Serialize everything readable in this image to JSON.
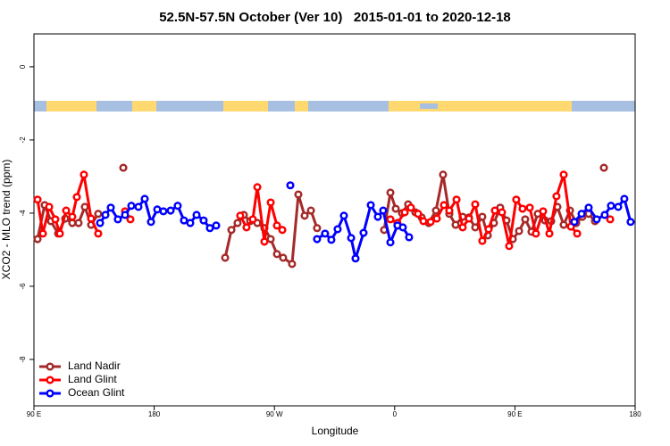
{
  "chart_data": {
    "type": "line",
    "title": "52.5N-57.5N October (Ver 10)   2015-01-01 to 2020-12-18",
    "xlabel": "Longitude",
    "ylabel": "XCO2 - MLO trend (ppm)",
    "xlim": [
      90,
      540
    ],
    "xticks": [
      {
        "value": 90,
        "label": "90 E"
      },
      180,
      {
        "value": 270,
        "label": "90 W"
      },
      {
        "value": 360,
        "label": "0"
      },
      {
        "value": 450,
        "label": "90 E"
      },
      {
        "value": 540,
        "label": "180"
      }
    ],
    "ylim": [
      -9.27,
      0.9
    ],
    "yticks": [
      0,
      -2,
      -4,
      -6,
      -8
    ],
    "legend": "bottom-left",
    "series": [
      {
        "name": "Land Nadir",
        "color": "#a52a2a",
        "x": [
          92.7,
          98.0,
          102.7,
          108.1,
          113.4,
          118.7,
          123.4,
          128.1,
          132.8,
          138.1,
          null,
          156.9,
          null,
          233.1,
          237.8,
          242.4,
          247.1,
          251.8,
          257.2,
          262.5,
          267.2,
          271.9,
          276.5,
          283.2,
          287.9,
          292.6,
          297.3,
          301.9,
          null,
          352.1,
          356.8,
          360.8,
          365.5,
          370.1,
          375.5,
          380.2,
          385.5,
          390.9,
          396.2,
          400.9,
          405.6,
          410.9,
          415.6,
          420.3,
          425.6,
          429.7,
          434.3,
          439.0,
          443.7,
          448.4,
          453.1,
          457.7,
          462.4,
          467.1,
          472.5,
          477.2,
          481.8,
          486.5,
          491.2,
          495.9,
          500.5,
          505.2,
          509.9,
          null,
          516.6
        ],
        "values": [
          -4.71,
          -3.78,
          -4.22,
          -4.56,
          -4.15,
          -4.27,
          -4.27,
          -3.83,
          -4.32,
          -4.02,
          null,
          -2.76,
          null,
          -5.22,
          -4.46,
          -4.27,
          -4.05,
          -4.22,
          -4.27,
          -4.41,
          -4.71,
          -5.12,
          -5.22,
          -5.39,
          -3.49,
          -4.07,
          -3.93,
          -4.41,
          null,
          -4.46,
          -3.44,
          -3.88,
          -4.0,
          -3.76,
          -3.98,
          -4.12,
          -4.27,
          -3.93,
          -2.95,
          -4.02,
          -4.32,
          -4.1,
          -4.12,
          -4.39,
          -4.1,
          -4.61,
          -4.27,
          -3.85,
          -4.2,
          -4.71,
          -4.49,
          -4.17,
          -4.51,
          -4.02,
          -4.2,
          -4.22,
          -3.83,
          -4.32,
          -3.93,
          -4.27,
          -4.1,
          -4.02,
          -4.22,
          null,
          -2.76
        ]
      },
      {
        "name": "Land Glint",
        "color": "#ff0000",
        "x": [
          92.7,
          96.7,
          101.4,
          106.0,
          109.4,
          114.1,
          118.7,
          122.1,
          127.4,
          132.8,
          138.1,
          null,
          158.2,
          162.2,
          null,
          244.4,
          249.1,
          253.8,
          257.2,
          262.5,
          267.2,
          271.9,
          275.9,
          null,
          356.8,
          362.1,
          367.5,
          372.1,
          377.5,
          381.5,
          386.9,
          391.5,
          396.9,
          400.9,
          406.3,
          410.9,
          415.6,
          420.3,
          425.6,
          430.3,
          435.0,
          440.3,
          445.7,
          451.0,
          455.7,
          461.1,
          465.7,
          471.1,
          475.8,
          481.1,
          486.5,
          491.9,
          496.6,
          null,
          521.3
        ],
        "values": [
          -3.63,
          -4.56,
          -3.83,
          -4.17,
          -4.56,
          -3.93,
          -4.1,
          -3.56,
          -2.95,
          -4.15,
          -4.56,
          null,
          -3.95,
          -4.17,
          null,
          -4.07,
          -4.39,
          -4.17,
          -3.29,
          -4.78,
          -3.71,
          -4.34,
          -4.46,
          null,
          -4.17,
          -4.27,
          -3.98,
          -3.85,
          -4.02,
          -4.22,
          -4.24,
          -4.15,
          -3.78,
          -3.93,
          -3.63,
          -4.39,
          -4.15,
          -3.76,
          -4.76,
          -4.44,
          -3.93,
          -3.98,
          -4.9,
          -3.63,
          -3.88,
          -3.85,
          -4.56,
          -3.95,
          -4.56,
          -3.54,
          -2.95,
          -4.37,
          -4.56,
          null,
          -4.17
        ]
      },
      {
        "name": "Ocean Glint",
        "color": "#0000ff",
        "x": [
          139.5,
          143.5,
          147.5,
          152.8,
          158.2,
          162.9,
          168.2,
          172.9,
          177.6,
          182.3,
          186.9,
          192.3,
          197.6,
          202.3,
          207.0,
          211.7,
          217.0,
          221.7,
          226.4,
          null,
          281.9,
          null,
          301.9,
          307.9,
          312.6,
          317.3,
          322.0,
          327.4,
          330.7,
          336.7,
          342.1,
          347.4,
          351.4,
          356.8,
          362.1,
          366.1,
          370.8,
          null,
          494.5,
          499.9,
          505.2,
          511.2,
          517.2,
          521.9,
          527.3,
          531.9,
          536.6
        ],
        "values": [
          -4.27,
          -4.05,
          -3.85,
          -4.17,
          -4.05,
          -3.8,
          -3.83,
          -3.61,
          -4.24,
          -3.9,
          -3.95,
          -3.93,
          -3.8,
          -4.2,
          -4.27,
          -4.05,
          -4.2,
          -4.41,
          -4.34,
          null,
          -3.24,
          null,
          -4.71,
          -4.56,
          -4.73,
          -4.44,
          -4.07,
          -4.68,
          -5.24,
          -4.54,
          -3.78,
          -4.1,
          -3.93,
          -4.8,
          -4.34,
          -4.39,
          -4.66,
          null,
          -4.24,
          -4.02,
          -3.85,
          -4.17,
          -4.05,
          -3.8,
          -3.83,
          -3.61,
          -4.24
        ]
      }
    ]
  }
}
